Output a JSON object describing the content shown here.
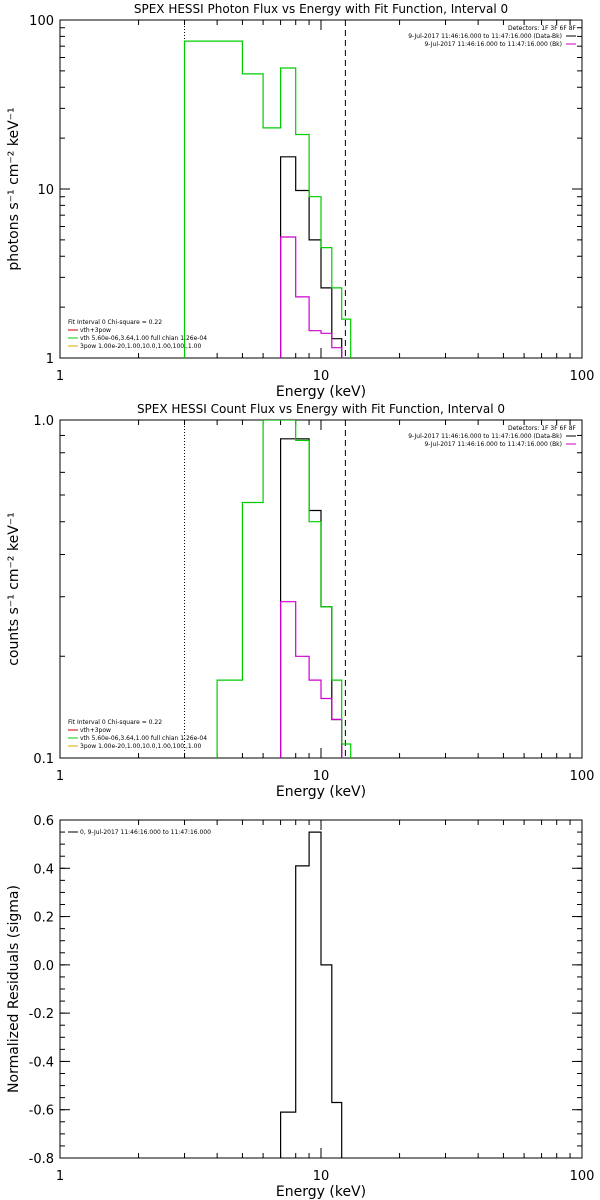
{
  "chart_data": [
    {
      "type": "line",
      "step": true,
      "title": "SPEX HESSI Photon Flux vs Energy with Fit Function, Interval 0",
      "xlabel": "Energy (keV)",
      "ylabel": "photons s⁻¹ cm⁻² keV⁻¹",
      "xscale": "log",
      "yscale": "log",
      "xlim": [
        1,
        100
      ],
      "ylim": [
        1,
        100
      ],
      "xticks": [
        "1",
        "10",
        "100"
      ],
      "yticks": [
        "1",
        "10",
        "100"
      ],
      "header": "Detectors: 1F 3F 6F 8F",
      "legend_right": [
        {
          "label": "9-Jul-2017 11:46:16.000 to 11:47:16.000 (Data-Bk)",
          "color": "#000000"
        },
        {
          "label": "9-Jul-2017 11:46:16.000 to 11:47:16.000 (Bk)",
          "color": "#cc00cc"
        }
      ],
      "legend_left": [
        {
          "label": "Fit Interval 0   Chi-square = 0.22",
          "color": null
        },
        {
          "label": "vth+3pow",
          "color": "#cc0000"
        },
        {
          "label": "vth 5.60e-06,3.64,1.00  full chian 1.26e-04",
          "color": "#00cc00"
        },
        {
          "label": "3pow 1.00e-20,1.00,10.0,1.00,100.,1.00",
          "color": "#ddaa00"
        }
      ],
      "vlines": [
        {
          "x": 3.0,
          "style": "dotted"
        },
        {
          "x": 12.4,
          "style": "dashed"
        }
      ],
      "series": [
        {
          "color": "#000000",
          "edges": [
            7,
            8,
            9,
            10,
            11,
            12
          ],
          "values": [
            15.5,
            9.8,
            5.0,
            2.6,
            1.3
          ]
        },
        {
          "color": "#cc00cc",
          "edges": [
            7,
            8,
            9,
            10,
            11,
            12
          ],
          "values": [
            5.2,
            2.3,
            1.45,
            1.4,
            1.15
          ]
        },
        {
          "color": "#00cc00",
          "edges": [
            3,
            4,
            5,
            6,
            7,
            8,
            9,
            10,
            11,
            12,
            13
          ],
          "values": [
            75,
            75,
            48,
            23,
            52,
            21,
            9.0,
            4.5,
            2.6,
            1.7
          ]
        }
      ]
    },
    {
      "type": "line",
      "step": true,
      "title": "SPEX HESSI Count Flux vs Energy with Fit Function, Interval 0",
      "xlabel": "Energy (keV)",
      "ylabel": "counts s⁻¹ cm⁻² keV⁻¹",
      "xscale": "log",
      "yscale": "log",
      "xlim": [
        1,
        100
      ],
      "ylim": [
        0.1,
        1.0
      ],
      "xticks": [
        "1",
        "10",
        "100"
      ],
      "yticks": [
        "0.1",
        "1.0"
      ],
      "header": "Detectors: 1F 3F 6F 8F",
      "legend_right": [
        {
          "label": "9-Jul-2017 11:46:16.000 to 11:47:16.000 (Data-Bk)",
          "color": "#000000"
        },
        {
          "label": "9-Jul-2017 11:46:16.000 to 11:47:16.000 (Bk)",
          "color": "#cc00cc"
        }
      ],
      "legend_left": [
        {
          "label": "Fit Interval 0   Chi-square = 0.22",
          "color": null
        },
        {
          "label": "vth+3pow",
          "color": "#cc0000"
        },
        {
          "label": "vth 5.60e-06,3.64,1.00  full chian 1.26e-04",
          "color": "#00cc00"
        },
        {
          "label": "3pow 1.00e-20,1.00,10.0,1.00,100.,1.00",
          "color": "#ddaa00"
        }
      ],
      "vlines": [
        {
          "x": 3.0,
          "style": "dotted"
        },
        {
          "x": 12.4,
          "style": "dashed"
        }
      ],
      "series": [
        {
          "color": "#000000",
          "edges": [
            7,
            8,
            9,
            10,
            11,
            12
          ],
          "values": [
            0.88,
            0.88,
            0.54,
            0.28,
            0.13
          ]
        },
        {
          "color": "#cc00cc",
          "edges": [
            7,
            8,
            9,
            10,
            11,
            12
          ],
          "values": [
            0.29,
            0.2,
            0.17,
            0.15,
            0.13
          ]
        },
        {
          "color": "#00cc00",
          "edges": [
            4,
            5,
            6,
            7,
            8,
            9,
            10,
            11,
            12,
            13
          ],
          "values": [
            0.17,
            0.57,
            1.0,
            1.0,
            0.87,
            0.5,
            0.28,
            0.17,
            0.11
          ]
        }
      ]
    },
    {
      "type": "line",
      "step": true,
      "title": "",
      "xlabel": "Energy (keV)",
      "ylabel": "Normalized Residuals (sigma)",
      "xscale": "log",
      "yscale": "linear",
      "xlim": [
        1,
        100
      ],
      "ylim": [
        -0.8,
        0.6
      ],
      "xticks": [
        "1",
        "10",
        "100"
      ],
      "yticks": [
        "-0.8",
        "-0.6",
        "-0.4",
        "-0.2",
        "0.0",
        "0.2",
        "0.4",
        "0.6"
      ],
      "header": "",
      "legend_right": [],
      "legend_left": [
        {
          "label": "0,  9-Jul-2017 11:46:16.000 to 11:47:16.000",
          "color": "#000000"
        }
      ],
      "vlines": [],
      "series": [
        {
          "color": "#000000",
          "edges": [
            7,
            8,
            9,
            10,
            11,
            12
          ],
          "values": [
            -0.61,
            0.41,
            0.55,
            0.0,
            -0.57
          ]
        }
      ]
    }
  ]
}
